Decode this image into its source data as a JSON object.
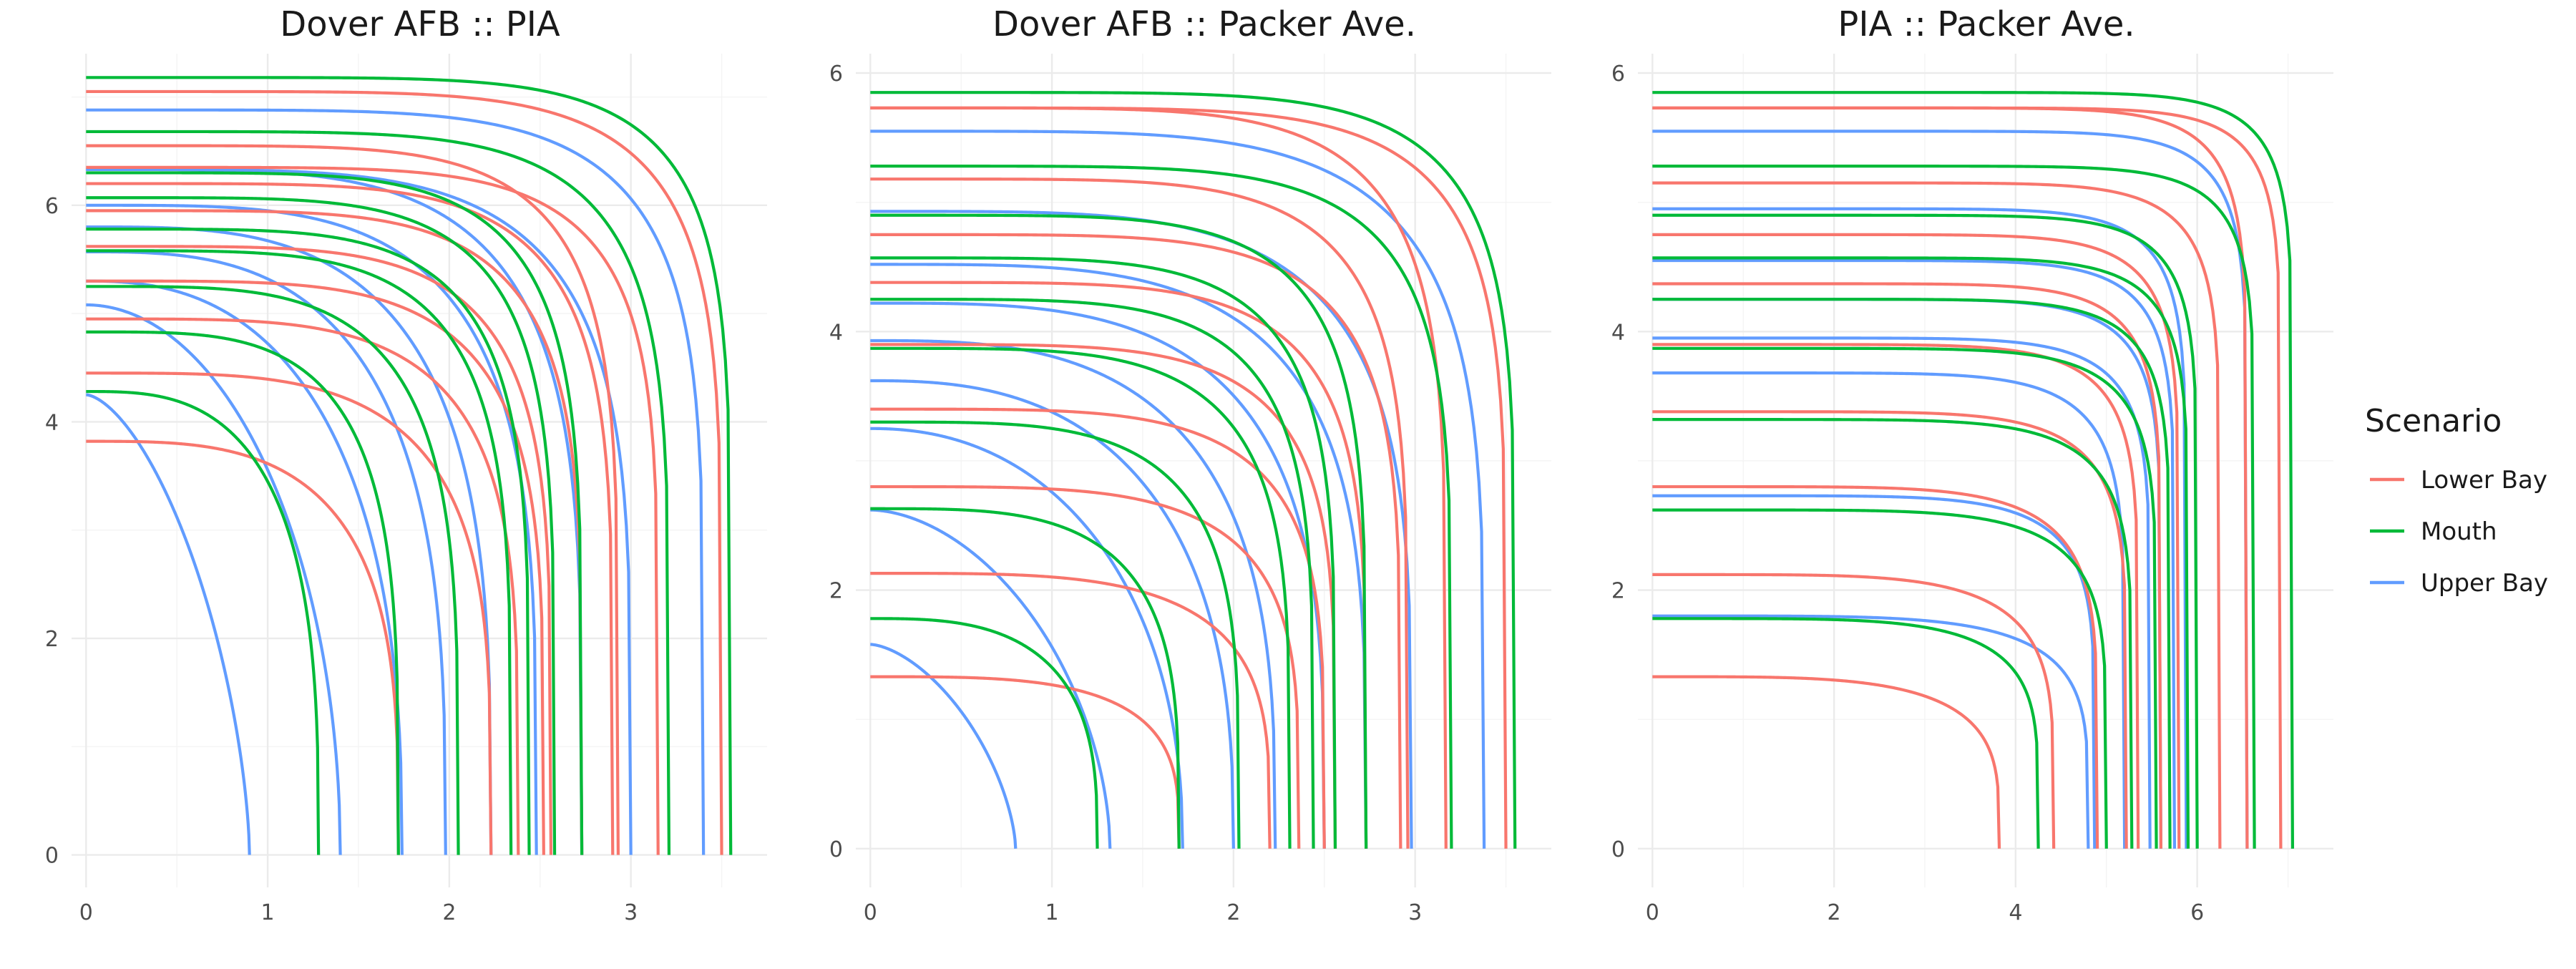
{
  "legend": {
    "title": "Scenario",
    "items": [
      {
        "label": "Lower Bay",
        "color": "#F8766D"
      },
      {
        "label": "Mouth",
        "color": "#00BA38"
      },
      {
        "label": "Upper Bay",
        "color": "#619CFF"
      }
    ]
  },
  "chart_data": [
    {
      "type": "line",
      "title": "Dover AFB :: PIA",
      "xlabel": "",
      "ylabel": "",
      "xlim": [
        -0.08,
        3.75
      ],
      "ylim": [
        -0.3,
        7.4
      ],
      "x_ticks": [
        "0",
        "1",
        "2",
        "3"
      ],
      "y_ticks": [
        "0",
        "2",
        "4",
        "6"
      ],
      "grid": true,
      "series": [
        {
          "name": "Upper Bay",
          "curves": [
            {
              "x_end": 0.9,
              "y_start": 4.25,
              "p": 1.6
            },
            {
              "x_end": 1.4,
              "y_start": 5.08,
              "p": 2.0
            },
            {
              "x_end": 1.74,
              "y_start": 5.3,
              "p": 2.5
            },
            {
              "x_end": 1.98,
              "y_start": 5.57,
              "p": 3.0
            },
            {
              "x_end": 2.23,
              "y_start": 5.8,
              "p": 3.3
            },
            {
              "x_end": 2.48,
              "y_start": 6.0,
              "p": 3.8
            },
            {
              "x_end": 2.73,
              "y_start": 6.33,
              "p": 4.2
            },
            {
              "x_end": 3.0,
              "y_start": 6.33,
              "p": 4.5
            },
            {
              "x_end": 3.4,
              "y_start": 6.88,
              "p": 5.5
            }
          ]
        },
        {
          "name": "Lower Bay",
          "curves": [
            {
              "x_end": 1.72,
              "y_start": 3.82,
              "p": 3.3
            },
            {
              "x_end": 2.23,
              "y_start": 4.45,
              "p": 3.8
            },
            {
              "x_end": 2.38,
              "y_start": 4.95,
              "p": 4.2
            },
            {
              "x_end": 2.52,
              "y_start": 5.3,
              "p": 4.5
            },
            {
              "x_end": 2.56,
              "y_start": 5.62,
              "p": 4.8
            },
            {
              "x_end": 2.73,
              "y_start": 5.95,
              "p": 5.0
            },
            {
              "x_end": 2.9,
              "y_start": 6.2,
              "p": 5.2
            },
            {
              "x_end": 2.93,
              "y_start": 6.55,
              "p": 5.5
            },
            {
              "x_end": 3.15,
              "y_start": 6.35,
              "p": 5.8
            },
            {
              "x_end": 3.5,
              "y_start": 7.05,
              "p": 6.0
            }
          ]
        },
        {
          "name": "Mouth",
          "curves": [
            {
              "x_end": 1.28,
              "y_start": 4.28,
              "p": 3.0
            },
            {
              "x_end": 1.72,
              "y_start": 4.83,
              "p": 3.8
            },
            {
              "x_end": 2.05,
              "y_start": 5.25,
              "p": 4.0
            },
            {
              "x_end": 2.34,
              "y_start": 5.58,
              "p": 4.5
            },
            {
              "x_end": 2.44,
              "y_start": 5.78,
              "p": 4.8
            },
            {
              "x_end": 2.58,
              "y_start": 6.07,
              "p": 5.0
            },
            {
              "x_end": 2.73,
              "y_start": 6.3,
              "p": 5.2
            },
            {
              "x_end": 3.21,
              "y_start": 6.68,
              "p": 5.6
            },
            {
              "x_end": 3.55,
              "y_start": 7.18,
              "p": 6.5
            }
          ]
        }
      ]
    },
    {
      "type": "line",
      "title": "Dover AFB :: Packer Ave.",
      "xlabel": "",
      "ylabel": "",
      "xlim": [
        -0.08,
        3.75
      ],
      "ylim": [
        -0.3,
        6.15
      ],
      "x_ticks": [
        "0",
        "1",
        "2",
        "3"
      ],
      "y_ticks": [
        "0",
        "2",
        "4",
        "6"
      ],
      "grid": true,
      "series": [
        {
          "name": "Upper Bay",
          "curves": [
            {
              "x_end": 0.8,
              "y_start": 1.58,
              "p": 1.6
            },
            {
              "x_end": 1.32,
              "y_start": 2.62,
              "p": 1.8
            },
            {
              "x_end": 1.72,
              "y_start": 3.25,
              "p": 2.2
            },
            {
              "x_end": 2.0,
              "y_start": 3.62,
              "p": 2.6
            },
            {
              "x_end": 2.23,
              "y_start": 3.93,
              "p": 3.0
            },
            {
              "x_end": 2.5,
              "y_start": 4.22,
              "p": 3.4
            },
            {
              "x_end": 2.73,
              "y_start": 4.52,
              "p": 3.8
            },
            {
              "x_end": 2.98,
              "y_start": 4.93,
              "p": 4.2
            },
            {
              "x_end": 3.38,
              "y_start": 5.55,
              "p": 4.8
            }
          ]
        },
        {
          "name": "Lower Bay",
          "curves": [
            {
              "x_end": 1.7,
              "y_start": 1.33,
              "p": 3.5
            },
            {
              "x_end": 2.2,
              "y_start": 2.13,
              "p": 3.8
            },
            {
              "x_end": 2.36,
              "y_start": 2.8,
              "p": 4.2
            },
            {
              "x_end": 2.5,
              "y_start": 3.4,
              "p": 4.5
            },
            {
              "x_end": 2.56,
              "y_start": 3.9,
              "p": 4.8
            },
            {
              "x_end": 2.73,
              "y_start": 4.38,
              "p": 5.0
            },
            {
              "x_end": 2.92,
              "y_start": 4.75,
              "p": 5.2
            },
            {
              "x_end": 2.96,
              "y_start": 5.18,
              "p": 5.4
            },
            {
              "x_end": 3.17,
              "y_start": 5.73,
              "p": 5.6
            },
            {
              "x_end": 3.5,
              "y_start": 5.73,
              "p": 6.0
            }
          ]
        },
        {
          "name": "Mouth",
          "curves": [
            {
              "x_end": 1.25,
              "y_start": 1.78,
              "p": 3.0
            },
            {
              "x_end": 1.7,
              "y_start": 2.63,
              "p": 3.6
            },
            {
              "x_end": 2.03,
              "y_start": 3.3,
              "p": 4.0
            },
            {
              "x_end": 2.31,
              "y_start": 3.87,
              "p": 4.4
            },
            {
              "x_end": 2.44,
              "y_start": 4.25,
              "p": 4.8
            },
            {
              "x_end": 2.56,
              "y_start": 4.57,
              "p": 5.0
            },
            {
              "x_end": 2.73,
              "y_start": 4.9,
              "p": 5.2
            },
            {
              "x_end": 3.2,
              "y_start": 5.28,
              "p": 5.6
            },
            {
              "x_end": 3.55,
              "y_start": 5.85,
              "p": 6.2
            }
          ]
        }
      ]
    },
    {
      "type": "line",
      "title": "PIA :: Packer Ave.",
      "xlabel": "",
      "ylabel": "",
      "xlim": [
        -0.16,
        7.5
      ],
      "ylim": [
        -0.3,
        6.15
      ],
      "x_ticks": [
        "0",
        "2",
        "4",
        "6"
      ],
      "y_ticks": [
        "0",
        "2",
        "4",
        "6"
      ],
      "grid": true,
      "series": [
        {
          "name": "Upper Bay",
          "curves": [
            {
              "x_end": 4.8,
              "y_start": 1.8,
              "p": 5.0
            },
            {
              "x_end": 4.87,
              "y_start": 2.73,
              "p": 6.5
            },
            {
              "x_end": 5.2,
              "y_start": 3.68,
              "p": 7.5
            },
            {
              "x_end": 5.48,
              "y_start": 3.95,
              "p": 8.5
            },
            {
              "x_end": 5.6,
              "y_start": 4.25,
              "p": 9.0
            },
            {
              "x_end": 5.75,
              "y_start": 4.55,
              "p": 9.5
            },
            {
              "x_end": 5.88,
              "y_start": 4.95,
              "p": 10.0
            },
            {
              "x_end": 6.55,
              "y_start": 5.55,
              "p": 11.0
            }
          ]
        },
        {
          "name": "Lower Bay",
          "curves": [
            {
              "x_end": 3.82,
              "y_start": 1.33,
              "p": 4.0
            },
            {
              "x_end": 4.42,
              "y_start": 2.12,
              "p": 5.0
            },
            {
              "x_end": 4.9,
              "y_start": 2.8,
              "p": 6.0
            },
            {
              "x_end": 5.22,
              "y_start": 3.38,
              "p": 7.0
            },
            {
              "x_end": 5.35,
              "y_start": 3.9,
              "p": 8.0
            },
            {
              "x_end": 5.6,
              "y_start": 4.37,
              "p": 9.0
            },
            {
              "x_end": 5.8,
              "y_start": 4.75,
              "p": 9.5
            },
            {
              "x_end": 6.25,
              "y_start": 5.15,
              "p": 10.0
            },
            {
              "x_end": 6.55,
              "y_start": 5.73,
              "p": 11.0
            },
            {
              "x_end": 6.92,
              "y_start": 5.73,
              "p": 12.0
            }
          ]
        },
        {
          "name": "Mouth",
          "curves": [
            {
              "x_end": 4.25,
              "y_start": 1.78,
              "p": 5.0
            },
            {
              "x_end": 5.0,
              "y_start": 2.62,
              "p": 6.0
            },
            {
              "x_end": 5.28,
              "y_start": 3.32,
              "p": 7.0
            },
            {
              "x_end": 5.55,
              "y_start": 3.87,
              "p": 8.0
            },
            {
              "x_end": 5.7,
              "y_start": 4.25,
              "p": 9.0
            },
            {
              "x_end": 5.9,
              "y_start": 4.57,
              "p": 9.5
            },
            {
              "x_end": 6.0,
              "y_start": 4.9,
              "p": 10.0
            },
            {
              "x_end": 6.63,
              "y_start": 5.28,
              "p": 11.0
            },
            {
              "x_end": 7.05,
              "y_start": 5.85,
              "p": 12.0
            }
          ]
        }
      ]
    }
  ]
}
